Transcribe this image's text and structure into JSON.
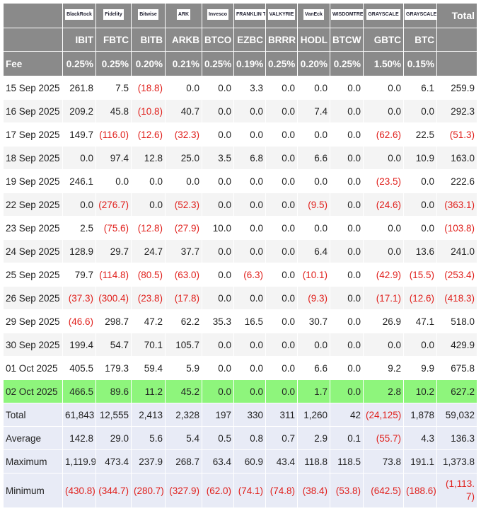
{
  "header": {
    "logos": [
      "BlackRock",
      "Fidelity",
      "Bitwise",
      "ARK",
      "Invesco",
      "FRANKLIN TEMPLETON",
      "VALKYRIE",
      "VanEck",
      "WISDOMTREE",
      "GRAYSCALE",
      "GRAYSCALE"
    ],
    "total": "Total",
    "tickers": [
      "IBIT",
      "FBTC",
      "BITB",
      "ARKB",
      "BTCO",
      "EZBC",
      "BRRR",
      "HODL",
      "BTCW",
      "GBTC",
      "BTC"
    ]
  },
  "fee": {
    "label": "Fee",
    "values": [
      "0.25%",
      "0.25%",
      "0.20%",
      "0.21%",
      "0.25%",
      "0.19%",
      "0.25%",
      "0.20%",
      "0.25%",
      "1.50%",
      "0.15%"
    ]
  },
  "rows": [
    {
      "date": "15 Sep 2025",
      "values": [
        "261.8",
        "7.5",
        "(18.8)",
        "0.0",
        "0.0",
        "3.3",
        "0.0",
        "0.0",
        "0.0",
        "0.0",
        "6.1",
        "259.9"
      ]
    },
    {
      "date": "16 Sep 2025",
      "values": [
        "209.2",
        "45.8",
        "(10.8)",
        "40.7",
        "0.0",
        "0.0",
        "0.0",
        "7.4",
        "0.0",
        "0.0",
        "0.0",
        "292.3"
      ]
    },
    {
      "date": "17 Sep 2025",
      "values": [
        "149.7",
        "(116.0)",
        "(12.6)",
        "(32.3)",
        "0.0",
        "0.0",
        "0.0",
        "0.0",
        "0.0",
        "(62.6)",
        "22.5",
        "(51.3)"
      ]
    },
    {
      "date": "18 Sep 2025",
      "values": [
        "0.0",
        "97.4",
        "12.8",
        "25.0",
        "3.5",
        "6.8",
        "0.0",
        "6.6",
        "0.0",
        "0.0",
        "10.9",
        "163.0"
      ]
    },
    {
      "date": "19 Sep 2025",
      "values": [
        "246.1",
        "0.0",
        "0.0",
        "0.0",
        "0.0",
        "0.0",
        "0.0",
        "0.0",
        "0.0",
        "(23.5)",
        "0.0",
        "222.6"
      ]
    },
    {
      "date": "22 Sep 2025",
      "values": [
        "0.0",
        "(276.7)",
        "0.0",
        "(52.3)",
        "0.0",
        "0.0",
        "0.0",
        "(9.5)",
        "0.0",
        "(24.6)",
        "0.0",
        "(363.1)"
      ]
    },
    {
      "date": "23 Sep 2025",
      "values": [
        "2.5",
        "(75.6)",
        "(12.8)",
        "(27.9)",
        "10.0",
        "0.0",
        "0.0",
        "0.0",
        "0.0",
        "0.0",
        "0.0",
        "(103.8)"
      ]
    },
    {
      "date": "24 Sep 2025",
      "values": [
        "128.9",
        "29.7",
        "24.7",
        "37.7",
        "0.0",
        "0.0",
        "0.0",
        "6.4",
        "0.0",
        "0.0",
        "13.6",
        "241.0"
      ]
    },
    {
      "date": "25 Sep 2025",
      "values": [
        "79.7",
        "(114.8)",
        "(80.5)",
        "(63.0)",
        "0.0",
        "(6.3)",
        "0.0",
        "(10.1)",
        "0.0",
        "(42.9)",
        "(15.5)",
        "(253.4)"
      ]
    },
    {
      "date": "26 Sep 2025",
      "values": [
        "(37.3)",
        "(300.4)",
        "(23.8)",
        "(17.8)",
        "0.0",
        "0.0",
        "0.0",
        "(9.3)",
        "0.0",
        "(17.1)",
        "(12.6)",
        "(418.3)"
      ]
    },
    {
      "date": "29 Sep 2025",
      "values": [
        "(46.6)",
        "298.7",
        "47.2",
        "62.2",
        "35.3",
        "16.5",
        "0.0",
        "30.7",
        "0.0",
        "26.9",
        "47.1",
        "518.0"
      ]
    },
    {
      "date": "30 Sep 2025",
      "values": [
        "199.4",
        "54.7",
        "70.1",
        "105.7",
        "0.0",
        "0.0",
        "0.0",
        "0.0",
        "0.0",
        "0.0",
        "0.0",
        "429.9"
      ]
    },
    {
      "date": "01 Oct 2025",
      "values": [
        "405.5",
        "179.3",
        "59.4",
        "5.9",
        "0.0",
        "0.0",
        "0.0",
        "6.6",
        "0.0",
        "9.2",
        "9.9",
        "675.8"
      ]
    },
    {
      "date": "02 Oct 2025",
      "values": [
        "466.5",
        "89.6",
        "11.2",
        "45.2",
        "0.0",
        "0.0",
        "0.0",
        "1.7",
        "0.0",
        "2.8",
        "10.2",
        "627.2"
      ]
    }
  ],
  "summary": [
    {
      "label": "Total",
      "values": [
        "61,843",
        "12,555",
        "2,413",
        "2,328",
        "197",
        "330",
        "311",
        "1,260",
        "42",
        "(24,125)",
        "1,878",
        "59,032"
      ]
    },
    {
      "label": "Average",
      "values": [
        "142.8",
        "29.0",
        "5.6",
        "5.4",
        "0.5",
        "0.8",
        "0.7",
        "2.9",
        "0.1",
        "(55.7)",
        "4.3",
        "136.3"
      ]
    },
    {
      "label": "Maximum",
      "values": [
        "1,119.9",
        "473.4",
        "237.9",
        "268.7",
        "63.4",
        "60.9",
        "43.4",
        "118.8",
        "118.5",
        "73.8",
        "191.1",
        "1,373.8"
      ]
    },
    {
      "label": "Minimum",
      "values": [
        "(430.8)",
        "(344.7)",
        "(280.7)",
        "(327.9)",
        "(62.0)",
        "(74.1)",
        "(74.8)",
        "(38.4)",
        "(53.8)",
        "(642.5)",
        "(188.6)",
        "(1,113.7)"
      ]
    }
  ]
}
